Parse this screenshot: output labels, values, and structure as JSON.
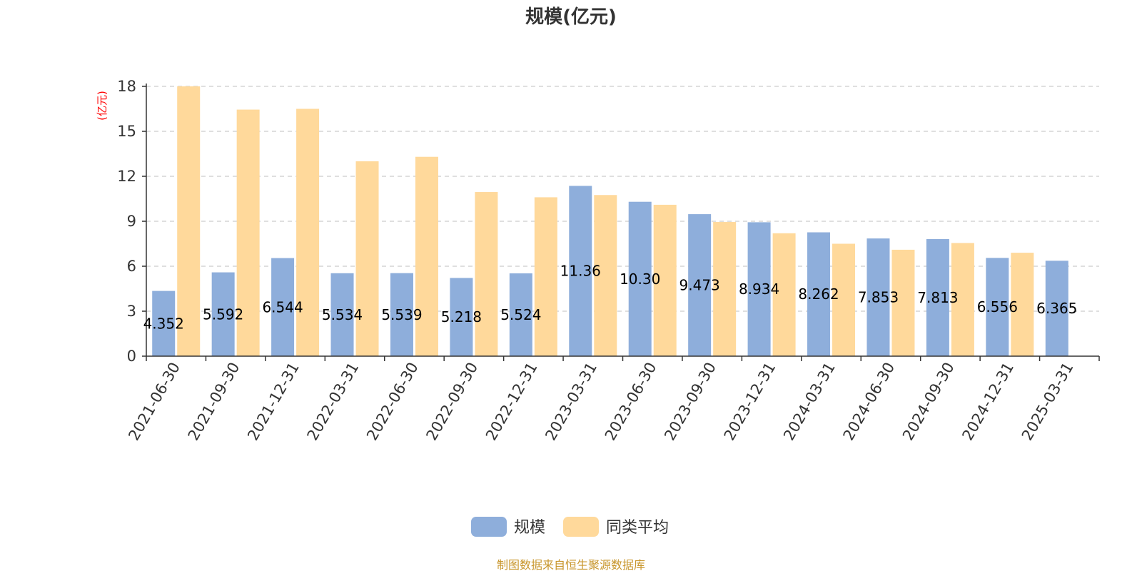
{
  "chart_data": {
    "type": "bar",
    "title": "规模(亿元)",
    "ylabel": "(亿元)",
    "xlabel": "",
    "ylim": [
      0,
      18
    ],
    "yticks": [
      0,
      3,
      6,
      9,
      12,
      15,
      18
    ],
    "grid": true,
    "legend_position": "bottom",
    "categories": [
      "2021-06-30",
      "2021-09-30",
      "2021-12-31",
      "2022-03-31",
      "2022-06-30",
      "2022-09-30",
      "2022-12-31",
      "2023-03-31",
      "2023-06-30",
      "2023-09-30",
      "2023-12-31",
      "2024-03-31",
      "2024-06-30",
      "2024-09-30",
      "2024-12-31",
      "2025-03-31"
    ],
    "series": [
      {
        "name": "规模",
        "color": "#8eaedb",
        "values": [
          4.352,
          5.592,
          6.544,
          5.534,
          5.539,
          5.218,
          5.524,
          11.36,
          10.3,
          9.473,
          8.934,
          8.262,
          7.853,
          7.813,
          6.556,
          6.365
        ],
        "labels": [
          "4.352",
          "5.592",
          "6.544",
          "5.534",
          "5.539",
          "5.218",
          "5.524",
          "11.36",
          "10.30",
          "9.473",
          "8.934",
          "8.262",
          "7.853",
          "7.813",
          "6.556",
          "6.365"
        ]
      },
      {
        "name": "同类平均",
        "color": "#ffd99b",
        "values": [
          18.0,
          16.45,
          16.5,
          13.0,
          13.3,
          10.95,
          10.6,
          10.75,
          10.1,
          8.95,
          8.2,
          7.5,
          7.1,
          7.55,
          6.9,
          null
        ]
      }
    ]
  },
  "footer": {
    "source": "制图数据来自恒生聚源数据库"
  }
}
